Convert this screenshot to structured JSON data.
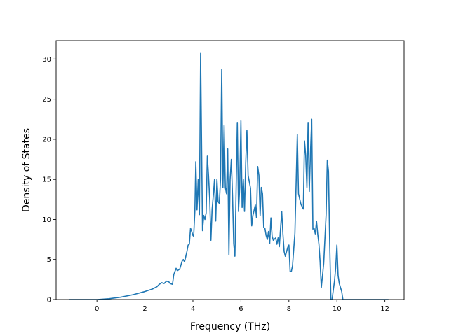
{
  "chart_data": {
    "type": "line",
    "title": "",
    "xlabel": "Frequency (THz)",
    "ylabel": "Density of States",
    "xlim": [
      -1.7,
      12.8
    ],
    "ylim": [
      0,
      32.3
    ],
    "x_ticks": [
      0,
      2,
      4,
      6,
      8,
      10,
      12
    ],
    "y_ticks": [
      0,
      5,
      10,
      15,
      20,
      25,
      30
    ],
    "grid": false,
    "legend": "none",
    "series": [
      {
        "color": "#1f77b4",
        "points": [
          [
            -1.15,
            0
          ],
          [
            -0.5,
            0
          ],
          [
            0,
            0
          ],
          [
            0.5,
            0.1
          ],
          [
            1.0,
            0.3
          ],
          [
            1.5,
            0.6
          ],
          [
            2.0,
            1.0
          ],
          [
            2.3,
            1.3
          ],
          [
            2.5,
            1.6
          ],
          [
            2.6,
            1.9
          ],
          [
            2.7,
            2.1
          ],
          [
            2.8,
            2.0
          ],
          [
            2.9,
            2.3
          ],
          [
            3.0,
            2.2
          ],
          [
            3.05,
            2.0
          ],
          [
            3.15,
            1.9
          ],
          [
            3.2,
            3.1
          ],
          [
            3.3,
            3.9
          ],
          [
            3.35,
            3.6
          ],
          [
            3.45,
            3.8
          ],
          [
            3.55,
            4.8
          ],
          [
            3.6,
            5.0
          ],
          [
            3.65,
            4.7
          ],
          [
            3.75,
            6.0
          ],
          [
            3.8,
            6.8
          ],
          [
            3.85,
            6.9
          ],
          [
            3.9,
            8.9
          ],
          [
            3.95,
            8.5
          ],
          [
            4.0,
            8.0
          ],
          [
            4.03,
            7.9
          ],
          [
            4.08,
            11.0
          ],
          [
            4.12,
            17.2
          ],
          [
            4.17,
            11.2
          ],
          [
            4.22,
            15.0
          ],
          [
            4.27,
            10.6
          ],
          [
            4.32,
            30.7
          ],
          [
            4.4,
            8.6
          ],
          [
            4.45,
            10.5
          ],
          [
            4.5,
            10.0
          ],
          [
            4.55,
            10.8
          ],
          [
            4.6,
            17.9
          ],
          [
            4.65,
            15.5
          ],
          [
            4.7,
            12.5
          ],
          [
            4.75,
            7.4
          ],
          [
            4.8,
            11.3
          ],
          [
            4.85,
            13.0
          ],
          [
            4.9,
            15.0
          ],
          [
            4.95,
            9.8
          ],
          [
            5.0,
            15.0
          ],
          [
            5.05,
            12.2
          ],
          [
            5.1,
            12.0
          ],
          [
            5.15,
            15.0
          ],
          [
            5.2,
            28.7
          ],
          [
            5.25,
            14.0
          ],
          [
            5.3,
            21.7
          ],
          [
            5.35,
            14.0
          ],
          [
            5.4,
            13.2
          ],
          [
            5.45,
            18.8
          ],
          [
            5.5,
            5.6
          ],
          [
            5.55,
            15.0
          ],
          [
            5.6,
            17.5
          ],
          [
            5.65,
            13.0
          ],
          [
            5.7,
            7.0
          ],
          [
            5.75,
            5.4
          ],
          [
            5.85,
            22.1
          ],
          [
            5.9,
            11.0
          ],
          [
            5.95,
            14.0
          ],
          [
            6.0,
            22.3
          ],
          [
            6.05,
            11.5
          ],
          [
            6.1,
            15.0
          ],
          [
            6.15,
            11.0
          ],
          [
            6.2,
            17.0
          ],
          [
            6.25,
            21.1
          ],
          [
            6.3,
            15.5
          ],
          [
            6.4,
            13.9
          ],
          [
            6.45,
            9.2
          ],
          [
            6.5,
            10.5
          ],
          [
            6.6,
            11.8
          ],
          [
            6.65,
            10.2
          ],
          [
            6.7,
            16.6
          ],
          [
            6.75,
            15.5
          ],
          [
            6.8,
            10.5
          ],
          [
            6.85,
            14.0
          ],
          [
            6.9,
            13.2
          ],
          [
            6.95,
            9.0
          ],
          [
            7.0,
            8.9
          ],
          [
            7.05,
            8.0
          ],
          [
            7.1,
            7.5
          ],
          [
            7.15,
            8.5
          ],
          [
            7.2,
            7.0
          ],
          [
            7.25,
            10.2
          ],
          [
            7.3,
            7.9
          ],
          [
            7.35,
            7.4
          ],
          [
            7.45,
            7.7
          ],
          [
            7.5,
            6.9
          ],
          [
            7.55,
            7.7
          ],
          [
            7.6,
            6.6
          ],
          [
            7.7,
            11.0
          ],
          [
            7.75,
            8.2
          ],
          [
            7.8,
            6.0
          ],
          [
            7.85,
            5.4
          ],
          [
            7.95,
            6.5
          ],
          [
            8.0,
            6.8
          ],
          [
            8.05,
            3.5
          ],
          [
            8.1,
            3.5
          ],
          [
            8.15,
            4.2
          ],
          [
            8.25,
            8.3
          ],
          [
            8.35,
            20.6
          ],
          [
            8.4,
            13.2
          ],
          [
            8.5,
            11.9
          ],
          [
            8.6,
            11.3
          ],
          [
            8.65,
            19.8
          ],
          [
            8.7,
            18.0
          ],
          [
            8.75,
            14.0
          ],
          [
            8.8,
            22.1
          ],
          [
            8.85,
            13.5
          ],
          [
            8.9,
            18.5
          ],
          [
            8.95,
            22.5
          ],
          [
            9.0,
            8.8
          ],
          [
            9.05,
            8.9
          ],
          [
            9.1,
            8.2
          ],
          [
            9.15,
            9.8
          ],
          [
            9.2,
            8.2
          ],
          [
            9.25,
            6.9
          ],
          [
            9.3,
            4.7
          ],
          [
            9.35,
            1.5
          ],
          [
            9.45,
            4.5
          ],
          [
            9.55,
            10.6
          ],
          [
            9.6,
            17.4
          ],
          [
            9.65,
            16.0
          ],
          [
            9.7,
            7.0
          ],
          [
            9.75,
            0
          ],
          [
            9.8,
            0
          ],
          [
            9.85,
            1.2
          ],
          [
            9.9,
            2.3
          ],
          [
            9.95,
            4.0
          ],
          [
            10.0,
            6.8
          ],
          [
            10.05,
            3.0
          ],
          [
            10.1,
            2.0
          ],
          [
            10.2,
            1.0
          ],
          [
            10.25,
            0
          ],
          [
            10.6,
            0
          ],
          [
            11.0,
            0
          ],
          [
            12.15,
            0
          ]
        ]
      }
    ]
  }
}
